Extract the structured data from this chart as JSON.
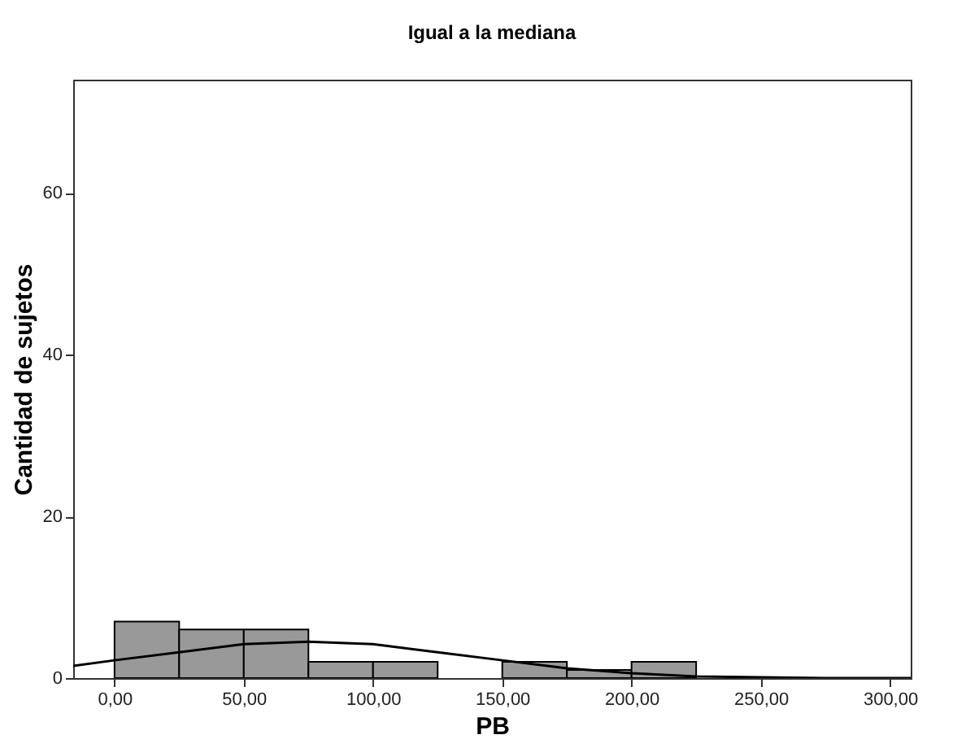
{
  "chart_data": {
    "type": "histogram",
    "title": "Igual a la mediana",
    "xlabel": "PB",
    "ylabel": "Cantidad de sujetos",
    "bins": [
      0,
      25,
      50,
      75,
      100,
      125,
      150,
      175,
      200,
      225
    ],
    "values": [
      7,
      6,
      6,
      2,
      2,
      0,
      2,
      1,
      2
    ],
    "color": "#999999",
    "series": [
      {
        "type": "line",
        "color": "#000000",
        "x": [
          -16,
          0,
          25,
          50,
          75,
          100,
          125,
          150,
          175,
          200,
          225,
          250,
          275,
          300,
          308
        ],
        "values": [
          1.5,
          2.2,
          3.2,
          4.2,
          4.5,
          4.2,
          3.2,
          2.2,
          1.2,
          0.6,
          0.2,
          0.1,
          0,
          0,
          0
        ]
      }
    ],
    "xlim": [
      -16,
      308
    ],
    "ylim": [
      0,
      74
    ],
    "xticks": [
      {
        "value": 0,
        "label": "0,00"
      },
      {
        "value": 50,
        "label": "50,00"
      },
      {
        "value": 100,
        "label": "100,00"
      },
      {
        "value": 150,
        "label": "150,00"
      },
      {
        "value": 200,
        "label": "200,00"
      },
      {
        "value": 250,
        "label": "250,00"
      },
      {
        "value": 300,
        "label": "300,00"
      }
    ],
    "yticks": [
      0,
      20,
      40,
      60
    ],
    "grid": false
  }
}
